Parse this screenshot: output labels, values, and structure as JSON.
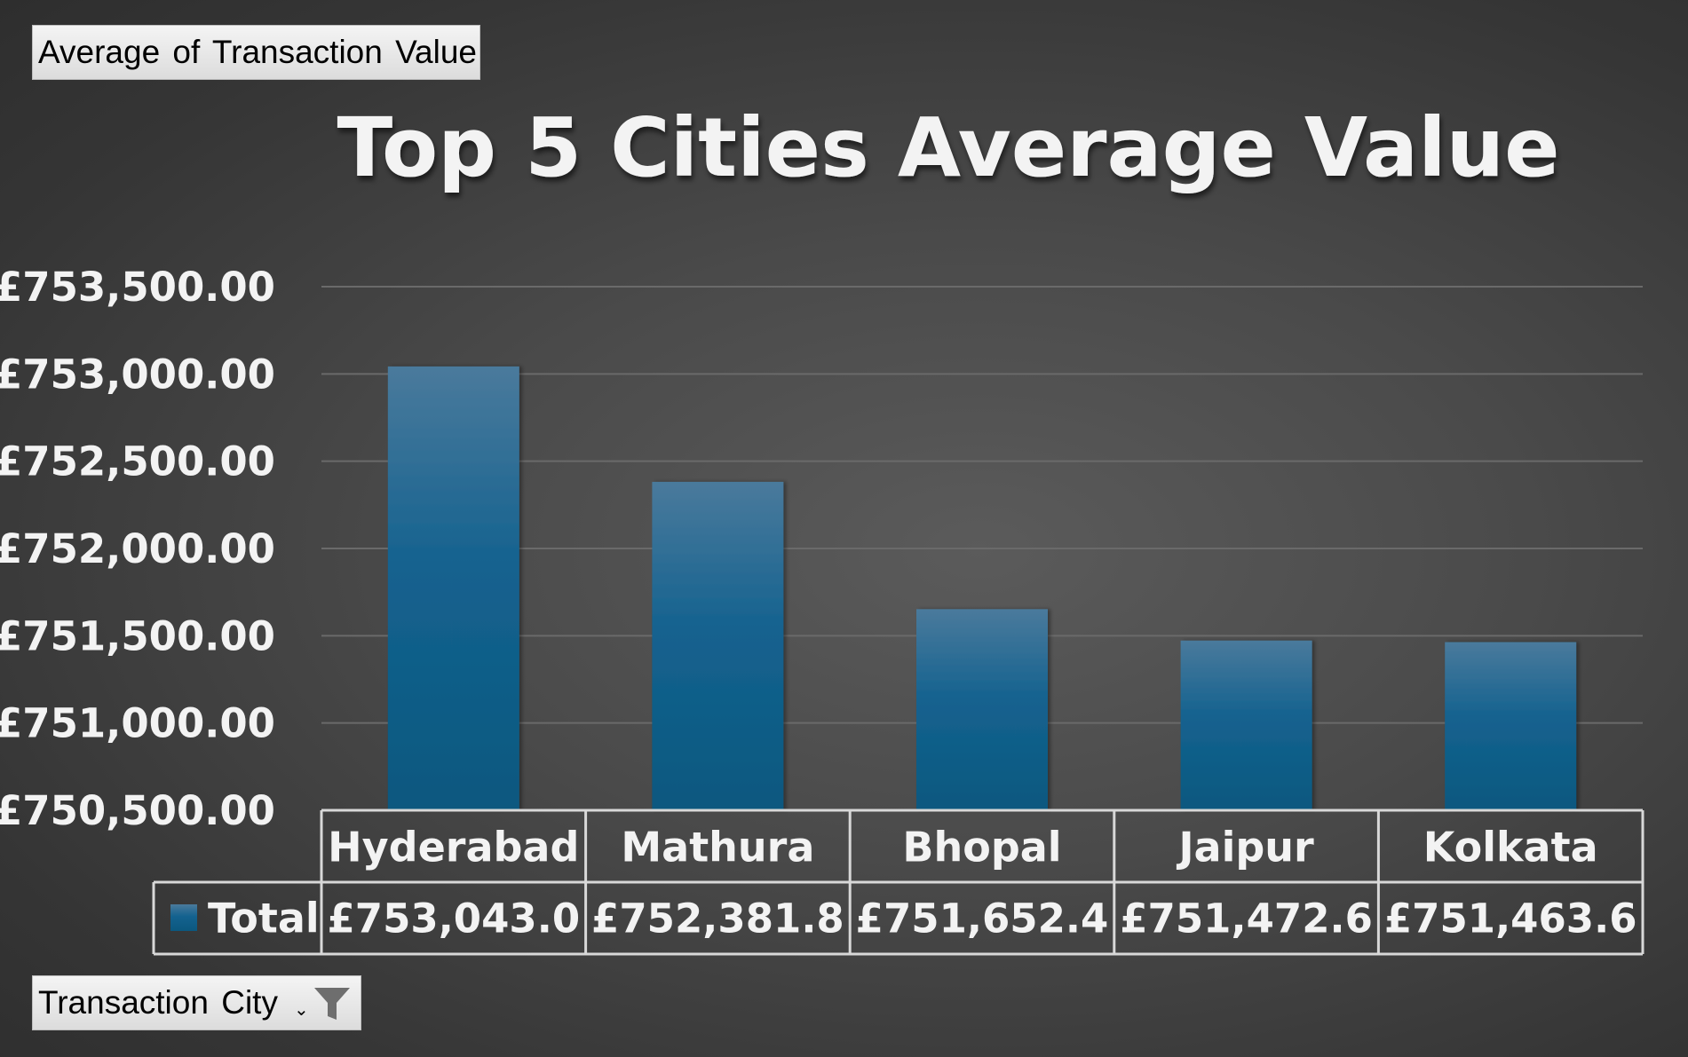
{
  "pivot": {
    "value_field_label": "Average of Transaction Value",
    "axis_field_label": "Transaction City",
    "filter_icon": "filter-funnel-icon",
    "dropdown_icon": "dropdown-arrow-icon"
  },
  "colors": {
    "bar": "#14628f",
    "bar_top": "#4a7a9c",
    "text": "#f3f3f3",
    "grid": "#6a6a6a",
    "table_border": "#d8d8d8"
  },
  "chart_data": {
    "type": "bar",
    "title": "Top 5 Cities Average Value",
    "categories": [
      "Hyderabad",
      "Mathura",
      "Bhopal",
      "Jaipur",
      "Kolkata"
    ],
    "series": [
      {
        "name": "Total",
        "values": [
          753043.0,
          752381.8,
          751652.4,
          751472.6,
          751463.6
        ],
        "value_labels": [
          "£753,043.0",
          "£752,381.8",
          "£751,652.4",
          "£751,472.6",
          "£751,463.6"
        ]
      }
    ],
    "ylim": [
      750500,
      753500
    ],
    "yticks": [
      750500,
      751000,
      751500,
      752000,
      752500,
      753000,
      753500
    ],
    "ytick_labels": [
      "£750,500.00",
      "£751,000.00",
      "£751,500.00",
      "£752,000.00",
      "£752,500.00",
      "£753,000.00",
      "£753,500.00"
    ],
    "grid": true,
    "legend": "data-table"
  }
}
